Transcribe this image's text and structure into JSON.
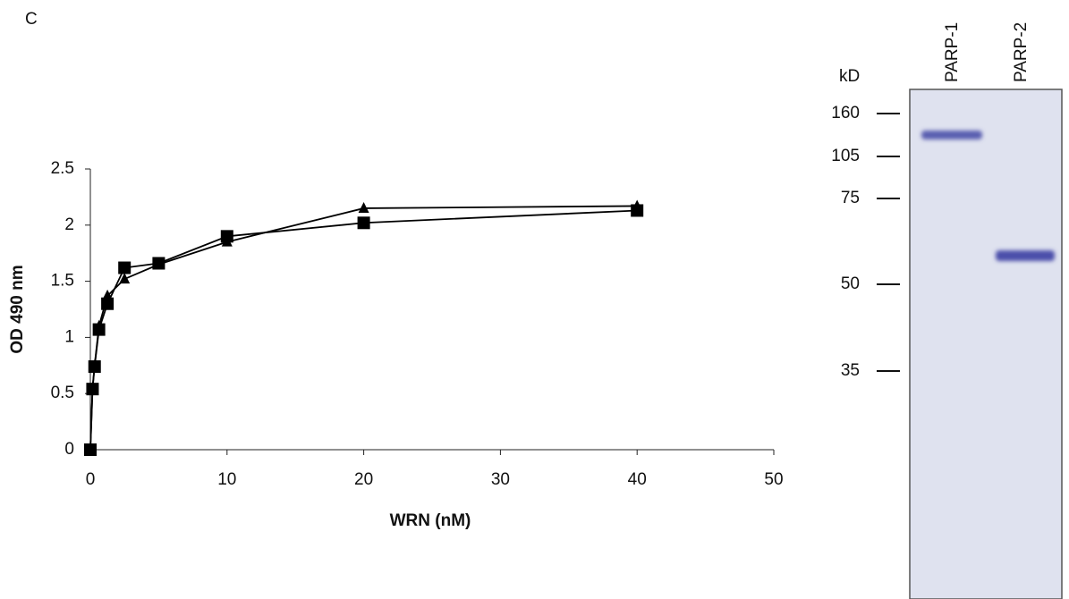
{
  "panel_label": "C",
  "chart_data": {
    "type": "line",
    "x_label": "WRN (nM)",
    "y_label": "OD 490 nm",
    "x": [
      0,
      0.16,
      0.31,
      0.63,
      1.25,
      2.5,
      5,
      10,
      20,
      40
    ],
    "series": [
      {
        "marker": "triangle",
        "color": "#000000",
        "values": [
          0,
          0.55,
          0.75,
          1.1,
          1.37,
          1.52,
          1.65,
          1.85,
          2.15,
          2.17
        ]
      },
      {
        "marker": "square",
        "color": "#000000",
        "values": [
          0,
          0.54,
          0.74,
          1.07,
          1.3,
          1.62,
          1.66,
          1.9,
          2.02,
          2.13
        ]
      }
    ],
    "xlim": [
      0,
      50
    ],
    "xticks": [
      0,
      10,
      20,
      30,
      40,
      50
    ],
    "ylim": [
      0,
      2.5
    ],
    "yticks": [
      0,
      0.5,
      1,
      1.5,
      2,
      2.5
    ],
    "grid": false
  },
  "gel": {
    "unit": "kD",
    "lanes": [
      "PARP-1",
      "PARP-2"
    ],
    "markers": [
      "160",
      "105",
      "75",
      "50",
      "35"
    ]
  }
}
